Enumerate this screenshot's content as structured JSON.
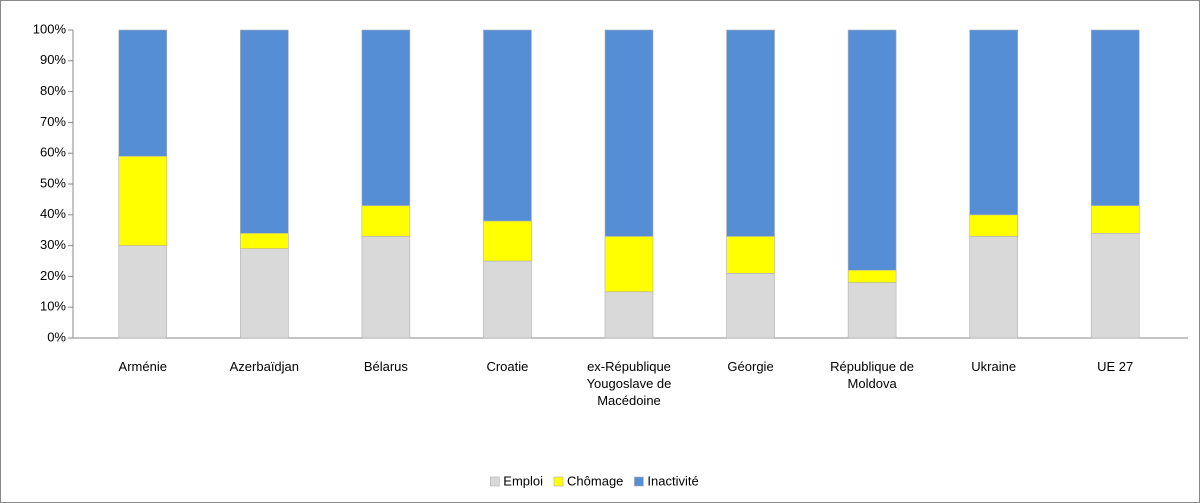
{
  "chart_data": {
    "type": "stacked_bar",
    "categories": [
      "Arménie",
      "Azerbaïdjan",
      "Bélarus",
      "Croatie",
      "ex-République Yougoslave de Macédoine",
      "Géorgie",
      "République de Moldova",
      "Ukraine",
      "UE 27"
    ],
    "series": [
      {
        "name": "Emploi",
        "color": "#d9d9d9",
        "values": [
          30,
          29,
          33,
          25,
          15,
          21,
          18,
          33,
          34
        ]
      },
      {
        "name": "Chômage",
        "color": "#ffff00",
        "values": [
          29,
          5,
          10,
          13,
          18,
          12,
          4,
          7,
          9
        ]
      },
      {
        "name": "Inactivité",
        "color": "#558ed5",
        "values": [
          41,
          66,
          57,
          62,
          67,
          67,
          78,
          60,
          57
        ]
      }
    ],
    "ylim": [
      0,
      100
    ],
    "yticks": [
      {
        "value": 0,
        "label": "0%"
      },
      {
        "value": 10,
        "label": "10%"
      },
      {
        "value": 20,
        "label": "20%"
      },
      {
        "value": 30,
        "label": "30%"
      },
      {
        "value": 40,
        "label": "40%"
      },
      {
        "value": 50,
        "label": "50%"
      },
      {
        "value": 60,
        "label": "60%"
      },
      {
        "value": 70,
        "label": "70%"
      },
      {
        "value": 80,
        "label": "80%"
      },
      {
        "value": 90,
        "label": "90%"
      },
      {
        "value": 100,
        "label": "100%"
      }
    ],
    "grid": false,
    "legend": "bottom"
  }
}
